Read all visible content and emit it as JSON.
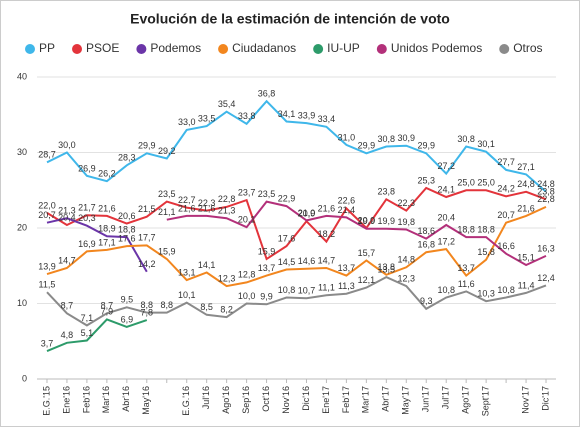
{
  "chart_data": {
    "type": "line",
    "title": "Evolución de la estimación de intención de voto",
    "categories": [
      "E.G.'15",
      "Ene'16",
      "Feb'16",
      "Mar'16",
      "Abr'16",
      "May'16",
      null,
      "E.G.'16",
      "Jul'16",
      "Ago'16",
      "Sep'16",
      "Oct'16",
      "Nov'16",
      "Dic'16",
      "Ene'17",
      "Feb'17",
      "Mar'17",
      "Abr'17",
      "May'17",
      "Jun'17",
      "Jul'17",
      "Ago'17",
      "Sept'17",
      null,
      "Nov'17",
      "Dic'17"
    ],
    "ylim": [
      0,
      40
    ],
    "yticks": [
      0,
      10,
      20,
      30,
      40
    ],
    "grid": true,
    "legend": "top",
    "series": [
      {
        "name": "PP",
        "color": "#3fb7ea",
        "values": [
          28.7,
          30.0,
          26.9,
          26.2,
          28.3,
          29.9,
          29.2,
          33.0,
          33.5,
          35.4,
          33.8,
          36.8,
          34.1,
          33.9,
          33.4,
          31.0,
          29.9,
          30.8,
          30.9,
          29.9,
          27.2,
          30.8,
          30.1,
          27.7,
          27.1,
          24.8
        ],
        "value_labels": [
          "28,7",
          "30,0",
          "26,9",
          "26,2",
          "28,3",
          "29,9",
          "29,2",
          "33,0",
          "33,5",
          "35,4",
          "33,8",
          "36,8",
          "34,1",
          "33,9",
          "33,4",
          "31,0",
          "29,9",
          "30,8",
          "30,9",
          "29,9",
          "27,2",
          "30,8",
          "30,1",
          "27,7",
          "27,1",
          "24,8"
        ]
      },
      {
        "name": "PSOE",
        "color": "#e3343b",
        "values": [
          22.0,
          20.4,
          21.7,
          21.6,
          20.6,
          21.5,
          23.5,
          22.7,
          22.3,
          22.8,
          23.7,
          15.9,
          17.6,
          20.9,
          18.2,
          22.6,
          20.0,
          23.8,
          22.3,
          25.3,
          24.1,
          25.0,
          25.0,
          24.2,
          24.8,
          23.8
        ],
        "value_labels": [
          "22,0",
          "20,4",
          "21,7",
          "21,6",
          "20,6",
          "21,5",
          "23,5",
          "22,7",
          "22,3",
          "22,8",
          "23,7",
          "15,9",
          "17,6",
          "20,9",
          "18,2",
          "22,6",
          "20,0",
          "23,8",
          "22,3",
          "25,3",
          "24,1",
          "25,0",
          "25,0",
          "24,2",
          "24,8",
          "23,8"
        ]
      },
      {
        "name": "Podemos",
        "color": "#6b35a8",
        "values": [
          20.7,
          21.3,
          20.3,
          18.9,
          18.8,
          14.2,
          null,
          null,
          null,
          null,
          null,
          null,
          null,
          null,
          null,
          null,
          null,
          null,
          null,
          null,
          null,
          null,
          null,
          null,
          null,
          null
        ],
        "value_labels": [
          "20,7",
          "21,3",
          "20,3",
          "18,9",
          "18,8",
          "14,2",
          null,
          null,
          null,
          null,
          null,
          null,
          null,
          null,
          null,
          null,
          null,
          null,
          null,
          null,
          null,
          null,
          null,
          null,
          null,
          null
        ]
      },
      {
        "name": "Ciudadanos",
        "color": "#f2861e",
        "values": [
          13.9,
          14.7,
          16.9,
          17.1,
          17.6,
          17.7,
          15.9,
          13.1,
          14.1,
          12.3,
          12.8,
          13.7,
          14.5,
          14.6,
          14.7,
          13.7,
          15.7,
          13.8,
          14.8,
          16.8,
          17.2,
          13.7,
          15.8,
          20.7,
          21.6,
          22.8
        ],
        "value_labels": [
          "13,9",
          "14,7",
          "16,9",
          "17,1",
          "17,6",
          "17,7",
          "15,9",
          "13,1",
          "14,1",
          "12,3",
          "12,8",
          "13,7",
          "14,5",
          "14,6",
          "14,7",
          "13,7",
          "15,7",
          "13,8",
          "14,8",
          "16,8",
          "17,2",
          "13,7",
          "15,8",
          "20,7",
          "21,6",
          "22,8"
        ]
      },
      {
        "name": "IU-UP",
        "color": "#2d9b6a",
        "values": [
          3.7,
          4.8,
          5.1,
          7.9,
          6.9,
          7.8,
          null,
          null,
          null,
          null,
          null,
          null,
          null,
          null,
          null,
          null,
          null,
          null,
          null,
          null,
          null,
          null,
          null,
          null,
          null,
          null
        ],
        "value_labels": [
          "3,7",
          "4,8",
          "5,1",
          "7,9",
          "6,9",
          "7,8",
          null,
          null,
          null,
          null,
          null,
          null,
          null,
          null,
          null,
          null,
          null,
          null,
          null,
          null,
          null,
          null,
          null,
          null,
          null,
          null
        ]
      },
      {
        "name": "Unidos Podemos",
        "color": "#b3307a",
        "values": [
          null,
          null,
          null,
          null,
          null,
          null,
          21.1,
          21.6,
          21.6,
          21.3,
          20.1,
          23.5,
          22.9,
          21.0,
          21.6,
          21.4,
          19.9,
          19.9,
          19.8,
          18.6,
          20.4,
          18.8,
          18.8,
          16.6,
          15.1,
          16.3
        ],
        "value_labels": [
          null,
          null,
          null,
          null,
          null,
          null,
          "21,1",
          "21,6",
          "21,6",
          "21,3",
          "20,1",
          "23,5",
          "22,9",
          "21,0",
          "21,6",
          "21,4",
          "19,9",
          "19,9",
          "19,8",
          "18,6",
          "20,4",
          "18,8",
          "18,8",
          "16,6",
          "15,1",
          "16,3"
        ]
      },
      {
        "name": "Otros",
        "color": "#8a8a8a",
        "values": [
          11.5,
          8.7,
          7.1,
          8.7,
          9.5,
          8.8,
          8.8,
          10.1,
          8.5,
          8.2,
          10.0,
          9.9,
          10.8,
          10.7,
          11.1,
          11.3,
          12.1,
          13.5,
          12.3,
          9.3,
          10.8,
          11.6,
          10.3,
          10.8,
          11.4,
          12.4
        ],
        "value_labels": [
          "11,5",
          "8,7",
          "7,1",
          "8,7",
          "9,5",
          "8,8",
          "8,8",
          "10,1",
          "8,5",
          "8,2",
          "10,0",
          "9,9",
          "10,8",
          "10,7",
          "11,1",
          "11,3",
          "12,1",
          "13,5",
          "12,3",
          "9,3",
          "10,8",
          "11,6",
          "10,3",
          "10,8",
          "11,4",
          "12,4"
        ]
      }
    ]
  }
}
